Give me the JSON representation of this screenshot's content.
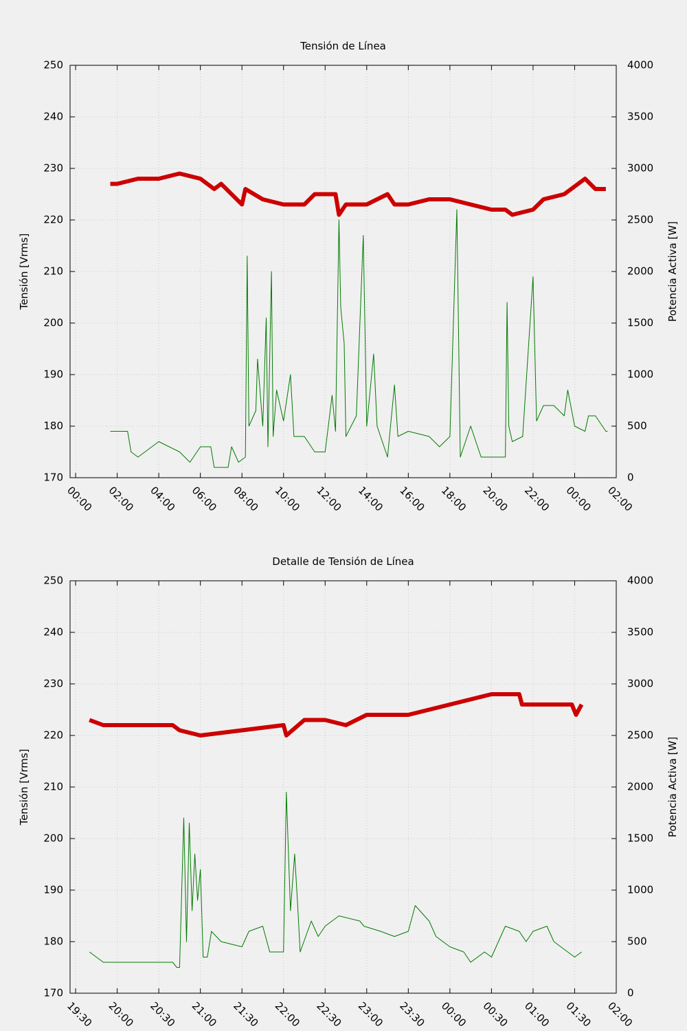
{
  "chart_data": [
    {
      "type": "line",
      "title": "Tensión de Línea",
      "ylabel": "Tensión [Vrms]",
      "y2label": "Potencia Activa [W]",
      "xlim": [
        -16,
        1560
      ],
      "xticks": [
        {
          "value": 0,
          "label": "00:00"
        },
        {
          "value": 120,
          "label": "02:00"
        },
        {
          "value": 240,
          "label": "04:00"
        },
        {
          "value": 360,
          "label": "06:00"
        },
        {
          "value": 480,
          "label": "08:00"
        },
        {
          "value": 600,
          "label": "10:00"
        },
        {
          "value": 720,
          "label": "12:00"
        },
        {
          "value": 840,
          "label": "14:00"
        },
        {
          "value": 960,
          "label": "16:00"
        },
        {
          "value": 1080,
          "label": "18:00"
        },
        {
          "value": 1200,
          "label": "20:00"
        },
        {
          "value": 1320,
          "label": "22:00"
        },
        {
          "value": 1440,
          "label": "00:00"
        },
        {
          "value": 1560,
          "label": "02:00"
        }
      ],
      "ylim": [
        170,
        250
      ],
      "yticks": [
        170,
        180,
        190,
        200,
        210,
        220,
        230,
        240,
        250
      ],
      "y2lim": [
        0,
        4000
      ],
      "y2ticks": [
        0,
        500,
        1000,
        1500,
        2000,
        2500,
        3000,
        3500,
        4000
      ],
      "grid": true,
      "series": [
        {
          "color": "#cc0000",
          "axis": "y",
          "x": [
            100,
            120,
            180,
            240,
            300,
            360,
            400,
            420,
            480,
            490,
            540,
            600,
            660,
            690,
            750,
            760,
            780,
            840,
            900,
            920,
            960,
            1020,
            1080,
            1140,
            1200,
            1240,
            1260,
            1320,
            1350,
            1410,
            1470,
            1500,
            1530
          ],
          "values": [
            227,
            227,
            228,
            228,
            229,
            228,
            226,
            227,
            223,
            226,
            224,
            223,
            223,
            225,
            225,
            221,
            223,
            223,
            225,
            223,
            223,
            224,
            224,
            223,
            222,
            222,
            221,
            222,
            224,
            225,
            228,
            226,
            226
          ]
        },
        {
          "color": "#007a00",
          "axis": "y2",
          "x": [
            100,
            150,
            160,
            180,
            240,
            300,
            330,
            360,
            390,
            400,
            440,
            450,
            470,
            490,
            495,
            500,
            520,
            525,
            540,
            550,
            555,
            565,
            570,
            580,
            600,
            620,
            630,
            660,
            690,
            720,
            740,
            750,
            760,
            765,
            775,
            780,
            810,
            830,
            840,
            860,
            870,
            900,
            920,
            930,
            960,
            1020,
            1050,
            1080,
            1100,
            1110,
            1140,
            1170,
            1240,
            1245,
            1250,
            1260,
            1290,
            1320,
            1330,
            1350,
            1380,
            1410,
            1420,
            1440,
            1470,
            1480,
            1500,
            1530,
            1535
          ],
          "values": [
            450,
            450,
            250,
            200,
            350,
            250,
            150,
            300,
            300,
            100,
            100,
            300,
            150,
            200,
            2150,
            500,
            650,
            1150,
            500,
            1550,
            300,
            2000,
            400,
            850,
            550,
            1000,
            400,
            400,
            250,
            250,
            800,
            450,
            2500,
            1650,
            1300,
            400,
            600,
            2350,
            500,
            1200,
            500,
            200,
            900,
            400,
            450,
            400,
            300,
            400,
            2600,
            200,
            500,
            200,
            200,
            1700,
            500,
            350,
            400,
            1950,
            550,
            700,
            700,
            600,
            850,
            500,
            450,
            600,
            600,
            450,
            450
          ]
        }
      ]
    },
    {
      "type": "line",
      "title": "Detalle de Tensión de Línea",
      "ylabel": "Tensión [Vrms]",
      "y2label": "Potencia Activa [W]",
      "xlim": [
        1166,
        1560
      ],
      "xticks": [
        {
          "value": 1170,
          "label": "19:30"
        },
        {
          "value": 1200,
          "label": "20:00"
        },
        {
          "value": 1230,
          "label": "20:30"
        },
        {
          "value": 1260,
          "label": "21:00"
        },
        {
          "value": 1290,
          "label": "21:30"
        },
        {
          "value": 1320,
          "label": "22:00"
        },
        {
          "value": 1350,
          "label": "22:30"
        },
        {
          "value": 1380,
          "label": "23:00"
        },
        {
          "value": 1410,
          "label": "23:30"
        },
        {
          "value": 1440,
          "label": "00:00"
        },
        {
          "value": 1470,
          "label": "00:30"
        },
        {
          "value": 1500,
          "label": "01:00"
        },
        {
          "value": 1530,
          "label": "01:30"
        },
        {
          "value": 1560,
          "label": "02:00"
        }
      ],
      "ylim": [
        170,
        250
      ],
      "yticks": [
        170,
        180,
        190,
        200,
        210,
        220,
        230,
        240,
        250
      ],
      "y2lim": [
        0,
        4000
      ],
      "y2ticks": [
        0,
        500,
        1000,
        1500,
        2000,
        2500,
        3000,
        3500,
        4000
      ],
      "grid": true,
      "series": [
        {
          "color": "#cc0000",
          "axis": "y",
          "x": [
            1180,
            1190,
            1240,
            1245,
            1260,
            1290,
            1320,
            1322,
            1335,
            1350,
            1365,
            1380,
            1410,
            1440,
            1470,
            1490,
            1492,
            1528,
            1531,
            1535
          ],
          "values": [
            223,
            222,
            222,
            221,
            220,
            221,
            222,
            220,
            223,
            223,
            222,
            224,
            224,
            226,
            228,
            228,
            226,
            226,
            224,
            226
          ]
        },
        {
          "color": "#007a00",
          "axis": "y2",
          "x": [
            1180,
            1185,
            1190,
            1195,
            1240,
            1243,
            1245,
            1248,
            1250,
            1252,
            1254,
            1256,
            1258,
            1260,
            1262,
            1265,
            1268,
            1275,
            1290,
            1295,
            1305,
            1310,
            1320,
            1322,
            1325,
            1328,
            1330,
            1332,
            1340,
            1345,
            1350,
            1360,
            1375,
            1378,
            1390,
            1400,
            1410,
            1415,
            1425,
            1430,
            1440,
            1450,
            1455,
            1465,
            1470,
            1480,
            1490,
            1495,
            1500,
            1510,
            1515,
            1525,
            1530,
            1535
          ],
          "values": [
            400,
            350,
            300,
            300,
            300,
            250,
            250,
            1700,
            500,
            1650,
            800,
            1350,
            900,
            1200,
            350,
            350,
            600,
            500,
            450,
            600,
            650,
            400,
            400,
            1950,
            800,
            1350,
            900,
            400,
            700,
            550,
            650,
            750,
            700,
            650,
            600,
            550,
            600,
            850,
            700,
            550,
            450,
            400,
            300,
            400,
            350,
            650,
            600,
            500,
            600,
            650,
            500,
            400,
            350,
            400
          ]
        }
      ]
    }
  ]
}
